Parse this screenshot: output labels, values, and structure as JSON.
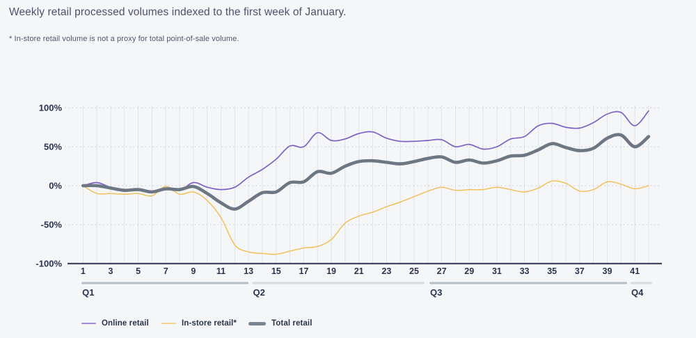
{
  "chart_data": {
    "type": "line",
    "title": "Weekly retail processed volumes indexed to the first week of January.",
    "footnote": "* In-store retail volume is not a proxy for total point-of-sale volume.",
    "x_unit": "week",
    "week_start": 1,
    "x_ticks": [
      1,
      3,
      5,
      7,
      9,
      11,
      13,
      15,
      17,
      19,
      21,
      23,
      25,
      27,
      29,
      31,
      33,
      35,
      37,
      39,
      41
    ],
    "y_ticks": [
      {
        "label": "100%",
        "value": 100
      },
      {
        "label": "50%",
        "value": 50
      },
      {
        "label": "0%",
        "value": 0
      },
      {
        "label": "-50%",
        "value": -50
      },
      {
        "label": "-100%",
        "value": -100
      }
    ],
    "ylim": [
      -100,
      100
    ],
    "grid": {
      "vertical": "per-week",
      "horizontal": "dotted"
    },
    "legend_position": "bottom-left",
    "series": [
      {
        "name": "In-store retail*",
        "color": "#f2c05a",
        "legend_color": "#f6d28e",
        "width": 1.5,
        "values": [
          0,
          -10,
          -10,
          -11,
          -10,
          -13,
          -1,
          -11,
          -8,
          -19,
          -41,
          -76,
          -85,
          -87,
          -88,
          -84,
          -80,
          -78,
          -69,
          -48,
          -39,
          -34,
          -27,
          -21,
          -14,
          -7,
          -2,
          -6,
          -5,
          -5,
          -2,
          -5,
          -8,
          -3,
          6,
          3,
          -7,
          -5,
          5,
          2,
          -4,
          0
        ]
      },
      {
        "name": "Online retail",
        "color": "#7e61c4",
        "legend_color": "#a18bd2",
        "width": 1.7,
        "values": [
          0,
          4,
          -2,
          -5,
          -4,
          -7,
          -3,
          -6,
          4,
          -2,
          -5,
          -2,
          11,
          21,
          34,
          51,
          50,
          68,
          58,
          60,
          67,
          69,
          61,
          57,
          57,
          58,
          59,
          50,
          53,
          47,
          50,
          60,
          63,
          77,
          80,
          75,
          74,
          81,
          92,
          94,
          77,
          96
        ]
      },
      {
        "name": "Total retail",
        "color": "#6d7683",
        "legend_color": "#7b8492",
        "width": 4.6,
        "values": [
          0,
          0,
          -3,
          -6,
          -5,
          -8,
          -4,
          -5,
          -1,
          -10,
          -22,
          -30,
          -20,
          -9,
          -8,
          4,
          5,
          18,
          16,
          25,
          31,
          32,
          30,
          28,
          31,
          35,
          37,
          30,
          33,
          29,
          32,
          38,
          39,
          46,
          54,
          49,
          45,
          48,
          61,
          65,
          50,
          63
        ]
      }
    ],
    "quarters": [
      {
        "label": "Q1",
        "from_week": 0.89,
        "to_week": 13.0,
        "tone": "dark"
      },
      {
        "label": "Q2",
        "from_week": 13.27,
        "to_week": 25.76,
        "tone": "light"
      },
      {
        "label": "Q3",
        "from_week": 26.11,
        "to_week": 40.44,
        "tone": "dark"
      },
      {
        "label": "Q4",
        "from_week": 40.69,
        "to_week": 42.25,
        "tone": "light"
      }
    ],
    "colors": {
      "quarter_bar_dark": "#b7bdc7",
      "quarter_bar_light": "#d7dade",
      "axis_line": "#404a5e",
      "tick_text": "#2a344e",
      "vertical_grid": "#e0e3e8",
      "horizontal_grid": "#c7ccd6"
    }
  }
}
